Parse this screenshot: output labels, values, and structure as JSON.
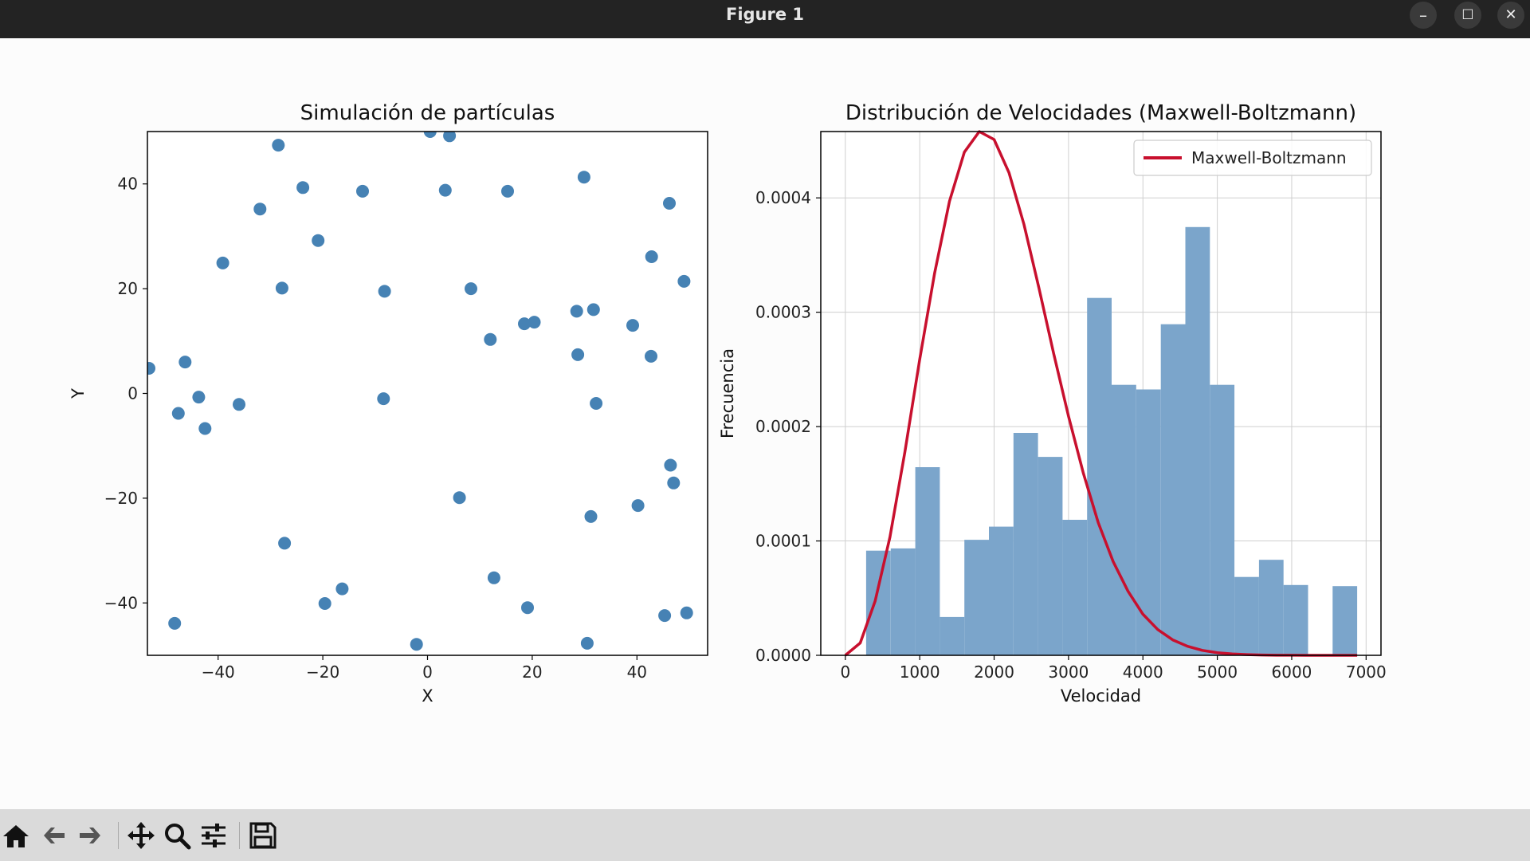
{
  "window": {
    "title": "Figure 1"
  },
  "window_controls": {
    "minimize": "–",
    "maximize": "☐",
    "close": "✕"
  },
  "toolbar": {
    "buttons": [
      {
        "name": "home-button",
        "icon": "home-icon"
      },
      {
        "name": "back-button",
        "icon": "arrow-left-icon"
      },
      {
        "name": "forward-button",
        "icon": "arrow-right-icon"
      },
      {
        "name": "pan-button",
        "icon": "move-icon"
      },
      {
        "name": "zoom-button",
        "icon": "magnifier-icon"
      },
      {
        "name": "configure-subplots-button",
        "icon": "sliders-icon"
      },
      {
        "name": "save-button",
        "icon": "floppy-disk-icon"
      }
    ]
  },
  "colors": {
    "marker": "#4682b4",
    "hist": "#7ba5cb",
    "curve": "#c8102e",
    "titlebar": "#232323",
    "toolbar": "#dadada"
  },
  "chart_data": [
    {
      "type": "scatter",
      "title": "Simulación de partículas",
      "xlabel": "X",
      "ylabel": "Y",
      "xlim": [
        -53.5,
        53.5
      ],
      "ylim": [
        -50,
        50
      ],
      "xticks": [
        -40,
        -20,
        0,
        20,
        40
      ],
      "yticks": [
        -40,
        -20,
        0,
        20,
        40
      ],
      "grid": false,
      "points": [
        [
          -28.5,
          47.4
        ],
        [
          0.5,
          50
        ],
        [
          4.2,
          49.2
        ],
        [
          -23.8,
          39.3
        ],
        [
          -12.4,
          38.6
        ],
        [
          3.4,
          38.8
        ],
        [
          15.3,
          38.6
        ],
        [
          29.9,
          41.3
        ],
        [
          46.2,
          36.3
        ],
        [
          -32,
          35.2
        ],
        [
          -20.9,
          29.2
        ],
        [
          -39.1,
          24.9
        ],
        [
          42.8,
          26.1
        ],
        [
          49,
          21.4
        ],
        [
          -27.8,
          20.1
        ],
        [
          -8.2,
          19.5
        ],
        [
          8.3,
          20
        ],
        [
          28.5,
          15.7
        ],
        [
          31.7,
          16
        ],
        [
          18.5,
          13.3
        ],
        [
          20.4,
          13.6
        ],
        [
          39.2,
          13
        ],
        [
          12,
          10.3
        ],
        [
          -46.3,
          6
        ],
        [
          28.7,
          7.4
        ],
        [
          42.7,
          7.1
        ],
        [
          -53.2,
          4.8
        ],
        [
          -43.7,
          -0.7
        ],
        [
          -36,
          -2.1
        ],
        [
          -8.4,
          -1
        ],
        [
          32.2,
          -1.9
        ],
        [
          -47.6,
          -3.8
        ],
        [
          -42.5,
          -6.7
        ],
        [
          46.4,
          -13.7
        ],
        [
          47,
          -17.1
        ],
        [
          6.1,
          -19.9
        ],
        [
          40.2,
          -21.4
        ],
        [
          31.2,
          -23.5
        ],
        [
          -27.3,
          -28.6
        ],
        [
          12.7,
          -35.2
        ],
        [
          -16.3,
          -37.3
        ],
        [
          -19.6,
          -40.1
        ],
        [
          19.1,
          -40.9
        ],
        [
          -48.3,
          -43.9
        ],
        [
          45.3,
          -42.4
        ],
        [
          49.5,
          -41.9
        ],
        [
          -2.1,
          -47.9
        ],
        [
          30.5,
          -47.7
        ]
      ]
    },
    {
      "type": "bar",
      "title": "Distribución de Velocidades (Maxwell-Boltzmann)",
      "xlabel": "Velocidad",
      "ylabel": "Frecuencia",
      "xlim": [
        -330,
        7200
      ],
      "ylim": [
        0,
        0.000458
      ],
      "xticks": [
        0,
        1000,
        2000,
        3000,
        4000,
        5000,
        6000,
        7000
      ],
      "yticks": [
        "0.0000",
        "0.0001",
        "0.0002",
        "0.0003",
        "0.0004"
      ],
      "grid": true,
      "legend": {
        "position": "top-right",
        "entries": [
          "Maxwell-Boltzmann"
        ]
      },
      "histogram": {
        "bins": [
          [
            280,
            610,
            9.15e-05
          ],
          [
            610,
            940,
            9.35e-05
          ],
          [
            940,
            1270,
            0.0001645
          ],
          [
            1270,
            1600,
            3.35e-05
          ],
          [
            1600,
            1930,
            0.000101
          ],
          [
            1930,
            2260,
            0.0001125
          ],
          [
            2260,
            2590,
            0.0001945
          ],
          [
            2590,
            2920,
            0.0001735
          ],
          [
            2920,
            3250,
            0.0001185
          ],
          [
            3250,
            3580,
            0.0003125
          ],
          [
            3580,
            3910,
            0.0002365
          ],
          [
            3910,
            4240,
            0.0002325
          ],
          [
            4240,
            4570,
            0.0002895
          ],
          [
            4570,
            4900,
            0.0003745
          ],
          [
            4900,
            5230,
            0.0002365
          ],
          [
            5230,
            5560,
            6.85e-05
          ],
          [
            5560,
            5890,
            8.35e-05
          ],
          [
            5890,
            6220,
            6.15e-05
          ],
          [
            6220,
            6550,
            0.0
          ],
          [
            6550,
            6880,
            6.05e-05
          ]
        ]
      },
      "curve": {
        "name": "Maxwell-Boltzmann",
        "x": [
          0,
          200,
          400,
          600,
          800,
          1000,
          1200,
          1400,
          1600,
          1800,
          2000,
          2200,
          2400,
          2600,
          2800,
          3000,
          3200,
          3400,
          3600,
          3800,
          4000,
          4200,
          4400,
          4600,
          4800,
          5000,
          5200,
          5400,
          5600,
          5800,
          6000,
          6200,
          6400,
          6600,
          6880
        ],
        "y": [
          0,
          1.08e-05,
          4.74e-05,
          0.0001034,
          0.0001776,
          0.000259,
          0.000334,
          0.000397,
          0.00044,
          0.000458,
          0.000451,
          0.000422,
          0.000377,
          0.000322,
          0.000264,
          0.000209,
          0.000159,
          0.000116,
          8.2e-05,
          5.6e-05,
          3.6e-05,
          2.25e-05,
          1.35e-05,
          7.9e-06,
          4.3e-06,
          2.3e-06,
          1.2e-06,
          6e-07,
          3e-07,
          1e-07,
          1e-07,
          0,
          0,
          0,
          0
        ]
      }
    }
  ]
}
